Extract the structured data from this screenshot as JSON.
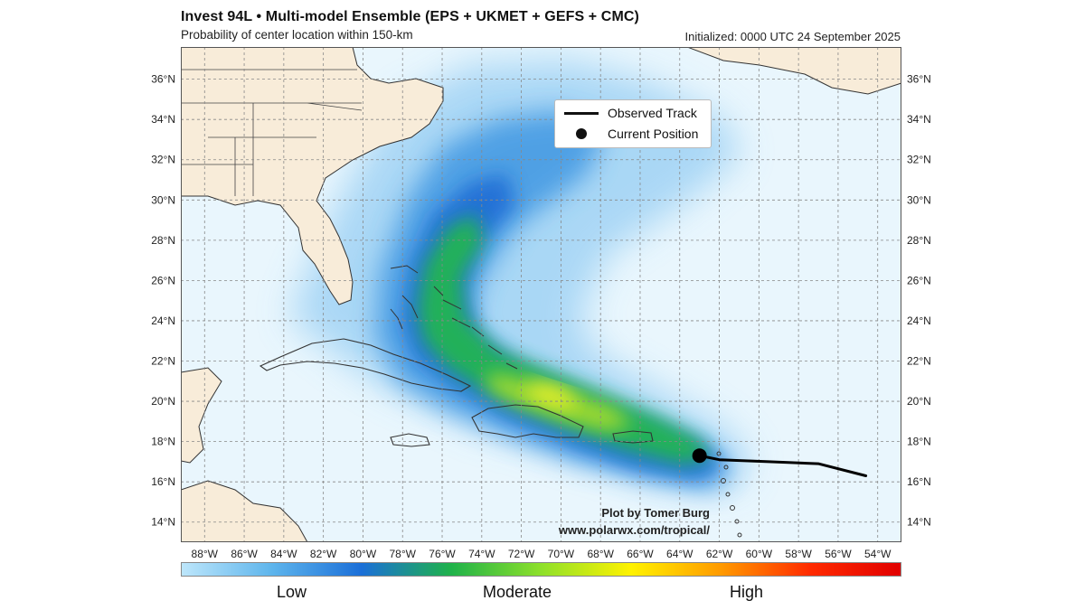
{
  "title": "Invest 94L • Multi-model Ensemble (EPS + UKMET + GEFS + CMC)",
  "subtitle": "Probability of center location within 150-km",
  "initialized": "Initialized: 0000 UTC 24 September 2025",
  "legend": {
    "observed_track": "Observed Track",
    "current_position": "Current Position"
  },
  "credit": {
    "author": "Plot by Tomer Burg",
    "website": "www.polarwx.com/tropical/"
  },
  "map": {
    "lat_labels": [
      "36°N",
      "34°N",
      "32°N",
      "30°N",
      "28°N",
      "26°N",
      "24°N",
      "22°N",
      "20°N",
      "18°N",
      "16°N",
      "14°N"
    ],
    "lon_labels": [
      "88°W",
      "86°W",
      "84°W",
      "82°W",
      "80°W",
      "78°W",
      "76°W",
      "74°W",
      "72°W",
      "70°W",
      "68°W",
      "66°W",
      "64°W",
      "62°W",
      "60°W",
      "58°W",
      "56°W",
      "54°W"
    ],
    "current_position": {
      "lat": 17.3,
      "lon": -63.0
    },
    "observed_track": [
      {
        "lat": 17.3,
        "lon": -63.0
      },
      {
        "lat": 17.1,
        "lon": -62.0
      },
      {
        "lat": 17.0,
        "lon": -59.5
      },
      {
        "lat": 16.9,
        "lon": -57.0
      },
      {
        "lat": 16.3,
        "lon": -54.6
      }
    ],
    "colors": {
      "ocean": "#e8f6fd",
      "land": "#f8ecd9",
      "low": "#49a3de",
      "moderate": "#22c45a",
      "high": "#e9220f"
    }
  },
  "colorbar": {
    "labels": {
      "low": "Low",
      "moderate": "Moderate",
      "high": "High"
    },
    "colors": [
      "#bde6fb",
      "#5eb5ec",
      "#1b6fd8",
      "#1fb24a",
      "#8ee02a",
      "#fff200",
      "#ff9a00",
      "#ff2a00",
      "#e10000"
    ]
  }
}
